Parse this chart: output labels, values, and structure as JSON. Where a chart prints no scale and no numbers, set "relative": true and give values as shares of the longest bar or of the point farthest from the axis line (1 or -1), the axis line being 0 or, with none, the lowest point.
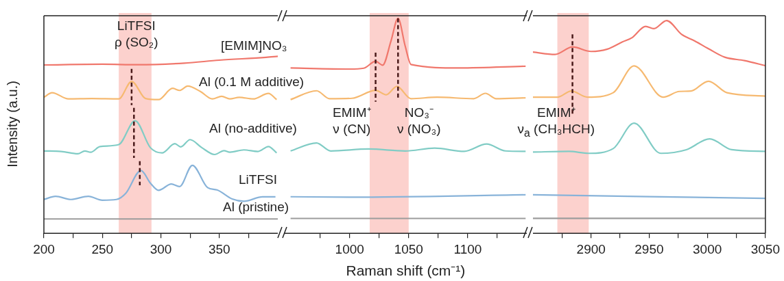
{
  "chart_data": [
    {
      "type": "line",
      "relative": true,
      "ylabel": "Intensity (a.u.)",
      "xlim": [
        200,
        400
      ],
      "xticks": [
        200,
        {
          "value": 225,
          "label": null
        },
        250,
        {
          "value": 275,
          "label": null
        },
        300,
        {
          "value": 325,
          "label": null
        },
        350,
        {
          "value": 375,
          "label": null
        }
      ],
      "tick_labels": "x",
      "bands": [
        {
          "axis": "x",
          "from": 264,
          "to": 292,
          "color": "#fbc9c4"
        }
      ],
      "ref_lines": [
        {
          "axis": "x",
          "value": 275,
          "color": "#4a1a1a",
          "line_style": "dashed"
        },
        {
          "axis": "x",
          "value": 277,
          "color": "#4a1a1a",
          "line_style": "dashed"
        },
        {
          "axis": "x",
          "value": 282,
          "color": "#4a1a1a",
          "line_style": "dashed"
        }
      ],
      "annotations": [
        "LiTFSI\nρ (SO₂)"
      ],
      "series": [
        {
          "name": "[EMIM]NO₃",
          "color": "#f0776c",
          "x": [
            200,
            250,
            280,
            320,
            350,
            390,
            400
          ],
          "values": [
            0.951,
            0.955,
            0.952,
            0.961,
            0.978,
            0.994,
            1
          ]
        },
        {
          "name": "Al (0.1 M additive)",
          "color": "#f6b970",
          "x": [
            200,
            207,
            221,
            241,
            264,
            275,
            287,
            298,
            310,
            316,
            323,
            334,
            344,
            352,
            359,
            367,
            379,
            392,
            399
          ],
          "values": [
            0.768,
            0.794,
            0.759,
            0.761,
            0.759,
            0.858,
            0.761,
            0.755,
            0.819,
            0.807,
            0.832,
            0.8,
            0.759,
            0.774,
            0.759,
            0.768,
            0.759,
            0.79,
            0.755
          ]
        },
        {
          "name": "Al (no-additive)",
          "color": "#80ccc5",
          "x": [
            200,
            215,
            229,
            235,
            240,
            248,
            264,
            278,
            291,
            301,
            312,
            317,
            325,
            335,
            346,
            354,
            359,
            371,
            383,
            392,
            399
          ],
          "values": [
            0.465,
            0.462,
            0.449,
            0.465,
            0.458,
            0.49,
            0.501,
            0.636,
            0.484,
            0.454,
            0.506,
            0.488,
            0.529,
            0.484,
            0.445,
            0.467,
            0.458,
            0.471,
            0.462,
            0.49,
            0.454
          ]
        },
        {
          "name": "LiTFSI",
          "color": "#88b3d9",
          "x": [
            200,
            210,
            223,
            238,
            250,
            262,
            270,
            283,
            291,
            298,
            309,
            316,
            327,
            340,
            348,
            361,
            371,
            387,
            398
          ],
          "values": [
            0.191,
            0.209,
            0.191,
            0.209,
            0.187,
            0.191,
            0.226,
            0.355,
            0.284,
            0.243,
            0.278,
            0.264,
            0.384,
            0.258,
            0.245,
            0.194,
            0.181,
            0.206,
            0.206
          ]
        },
        {
          "name": "Al (pristine)",
          "color": "#9c9c9c",
          "x": [
            200,
            400
          ],
          "values": [
            0.081,
            0.081
          ]
        }
      ]
    },
    {
      "type": "line",
      "relative": true,
      "xlabel": "Raman shift (cm⁻¹)",
      "xlim": [
        945,
        1150
      ],
      "xticks": [
        {
          "value": 975,
          "label": null
        },
        1000,
        {
          "value": 1025,
          "label": null
        },
        1050,
        {
          "value": 1075,
          "label": null
        },
        1100,
        {
          "value": 1125,
          "label": null
        }
      ],
      "tick_labels": "x",
      "bands": [
        {
          "axis": "x",
          "from": 1017,
          "to": 1050,
          "color": "#fbc9c4"
        }
      ],
      "ref_lines": [
        {
          "axis": "x",
          "value": 1022,
          "color": "#4a1a1a",
          "line_style": "dashed"
        },
        {
          "axis": "x",
          "value": 1041,
          "color": "#4a1a1a",
          "line_style": "dashed"
        }
      ],
      "annotations": [
        "EMIM⁺\nν (CN)",
        "NO₃⁻\nν (NO₃)"
      ],
      "series": [
        {
          "color": "#f0776c",
          "x": [
            950,
            1000,
            1012,
            1022,
            1028,
            1035,
            1041,
            1047,
            1052,
            1093,
            1149
          ],
          "values": [
            0.769,
            0.764,
            0.768,
            0.8,
            0.782,
            0.894,
            1,
            0.872,
            0.785,
            0.769,
            0.777
          ]
        },
        {
          "color": "#f6b970",
          "x": [
            950,
            972,
            983,
            1002,
            1022,
            1031,
            1040,
            1052,
            1074,
            1105,
            1115,
            1124,
            1149
          ],
          "values": [
            0.622,
            0.663,
            0.626,
            0.628,
            0.665,
            0.644,
            0.683,
            0.626,
            0.633,
            0.626,
            0.651,
            0.626,
            0.63
          ]
        },
        {
          "color": "#80ccc5",
          "x": [
            950,
            972,
            984,
            1016,
            1047,
            1072,
            1097,
            1116,
            1132,
            1149
          ],
          "values": [
            0.383,
            0.42,
            0.383,
            0.392,
            0.383,
            0.396,
            0.381,
            0.415,
            0.383,
            0.381
          ]
        },
        {
          "color": "#88b3d9",
          "x": [
            950,
            1000,
            1149
          ],
          "values": [
            0.17,
            0.168,
            0.179
          ]
        },
        {
          "color": "#9c9c9c",
          "x": [
            950,
            1149
          ],
          "values": [
            0.069,
            0.069
          ]
        }
      ]
    },
    {
      "type": "line",
      "relative": true,
      "xlim": [
        2850,
        3050
      ],
      "xticks": [
        {
          "value": 2875,
          "label": null
        },
        2900,
        {
          "value": 2925,
          "label": null
        },
        2950,
        {
          "value": 2975,
          "label": null
        },
        3000,
        {
          "value": 3025,
          "label": null
        },
        3050
      ],
      "tick_labels": "x",
      "bands": [
        {
          "axis": "x",
          "from": 2871,
          "to": 2898,
          "color": "#fbc9c4"
        }
      ],
      "ref_lines": [
        {
          "axis": "x",
          "value": 2884,
          "color": "#4a1a1a",
          "line_style": "dashed"
        }
      ],
      "annotations": [
        "EMIM⁺\nν$_{a}$ (CH₃HCH)"
      ],
      "series": [
        {
          "color": "#f0776c",
          "x": [
            2850,
            2869,
            2884,
            2900,
            2914,
            2927,
            2935,
            2947,
            2954,
            2965,
            2978,
            2989,
            3001,
            3015,
            3032,
            3050
          ],
          "values": [
            0.852,
            0.841,
            0.876,
            0.855,
            0.866,
            0.9,
            0.919,
            0.973,
            0.962,
            1,
            0.935,
            0.905,
            0.868,
            0.828,
            0.812,
            0.788
          ]
        },
        {
          "color": "#f6b970",
          "x": [
            2850,
            2871,
            2883,
            2897,
            2919,
            2937,
            2962,
            2976,
            2986,
            3001,
            3017,
            3050
          ],
          "values": [
            0.64,
            0.64,
            0.669,
            0.64,
            0.661,
            0.787,
            0.64,
            0.667,
            0.669,
            0.715,
            0.661,
            0.645
          ]
        },
        {
          "color": "#80ccc5",
          "x": [
            2850,
            2881,
            2898,
            2919,
            2937,
            2960,
            2982,
            3002,
            3021,
            3050
          ],
          "values": [
            0.382,
            0.385,
            0.376,
            0.398,
            0.518,
            0.376,
            0.393,
            0.444,
            0.393,
            0.385
          ]
        },
        {
          "color": "#88b3d9",
          "x": [
            2850,
            3050
          ],
          "values": [
            0.181,
            0.164
          ]
        },
        {
          "color": "#9c9c9c",
          "x": [
            2850,
            3050
          ],
          "values": [
            0.07,
            0.07
          ]
        }
      ]
    }
  ]
}
